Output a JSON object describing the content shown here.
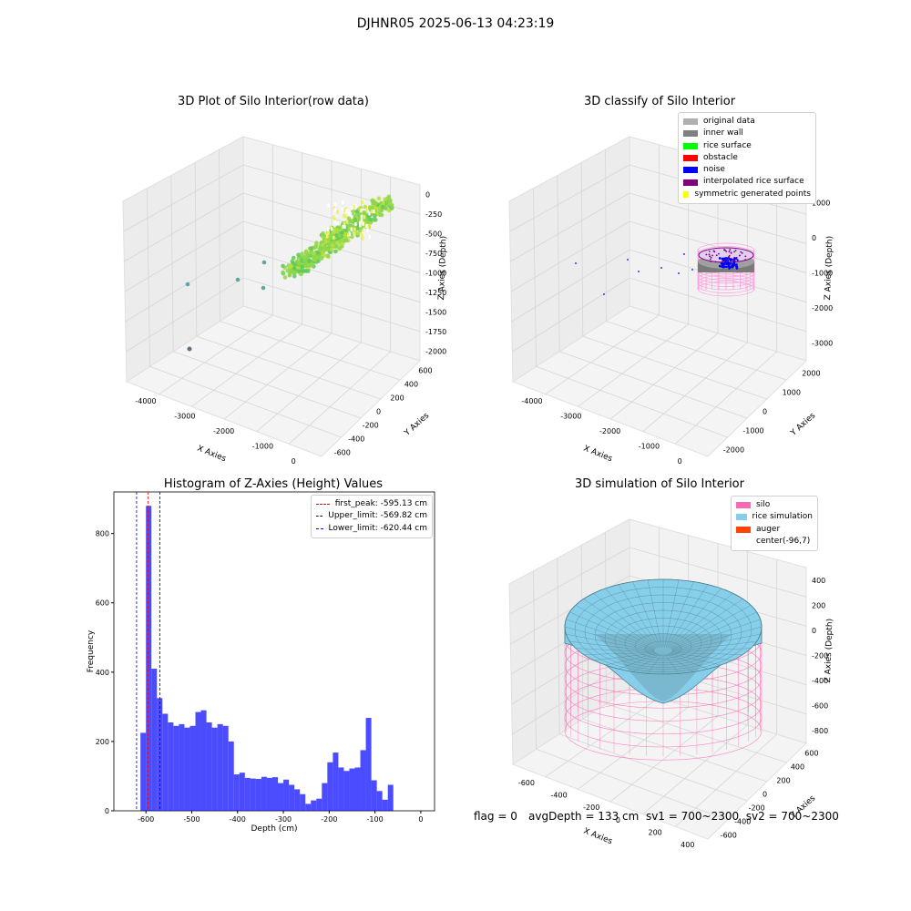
{
  "suptitle": "DJHNR05 2025-06-13 04:23:19",
  "panels": {
    "raw": {
      "title": "3D Plot of Silo Interior(row data)",
      "xlabel": "X Axies",
      "ylabel": "Y Axies",
      "zlabel": "Z Axies (Depth)",
      "xticks": [
        "-4000",
        "-3000",
        "-2000",
        "-1000",
        "0"
      ],
      "yticks": [
        "600",
        "400",
        "200",
        "0",
        "-200",
        "-400",
        "-600"
      ],
      "zticks": [
        "0",
        "-250",
        "-500",
        "-750",
        "-1000",
        "-1250",
        "-1500",
        "-1750",
        "-2000"
      ]
    },
    "classify": {
      "title": "3D classify of Silo Interior",
      "xlabel": "X Axies",
      "ylabel": "Y Axies",
      "zlabel": "Z Axies (Depth)",
      "xticks": [
        "-4000",
        "-3000",
        "-2000",
        "-1000",
        "0"
      ],
      "yticks": [
        "2000",
        "1000",
        "0",
        "-1000",
        "-2000"
      ],
      "zticks": [
        "1000",
        "0",
        "-1000",
        "-2000",
        "-3000"
      ],
      "legend": [
        {
          "label": "original data",
          "color": "#b0b0b0"
        },
        {
          "label": "inner wall",
          "color": "#808080"
        },
        {
          "label": "rice surface",
          "color": "#00ff00"
        },
        {
          "label": "obstacle",
          "color": "#ff0000"
        },
        {
          "label": "noise",
          "color": "#0000ff"
        },
        {
          "label": "interpolated rice surface",
          "color": "#800080"
        },
        {
          "label": "symmetric generated points",
          "color": "#ffff00"
        }
      ]
    },
    "histogram": {
      "title": "Histogram of Z-Axies (Height) Values",
      "legend": [
        {
          "label": "first_peak: -595.13 cm",
          "color": "#ff0000"
        },
        {
          "label": "Upper_limit: -569.82 cm",
          "color": "#00008b"
        },
        {
          "label": "Lower_limit: -620.44 cm",
          "color": "#0000ff"
        }
      ]
    },
    "simulation": {
      "title": "3D simulation of Silo Interior",
      "xlabel": "X Axies",
      "ylabel": "Y Axies",
      "zlabel": "Z Axies (Depth)",
      "xticks": [
        "-600",
        "-400",
        "-200",
        "0",
        "200",
        "400"
      ],
      "yticks": [
        "600",
        "400",
        "200",
        "0",
        "-200",
        "-400",
        "-600"
      ],
      "zticks": [
        "400",
        "200",
        "0",
        "-200",
        "-400",
        "-600",
        "-800"
      ],
      "legend": [
        {
          "label": "silo",
          "color": "#ff69b4"
        },
        {
          "label": "rice simulation",
          "color": "#87ceeb"
        },
        {
          "label": "auger",
          "color": "#ff4500"
        },
        {
          "label": "center(-96,7)",
          "color": "#ffffff"
        }
      ]
    }
  },
  "footer": {
    "flag": "flag = 0",
    "avg": "avgDepth = 133 cm  sv1 = 700~2300  sv2 = 700~2300"
  },
  "chart_data": {
    "type": "bar",
    "title": "Histogram of Z-Axies (Height) Values",
    "xlabel": "Depth (cm)",
    "ylabel": "Frequency",
    "xlim": [
      -670,
      30
    ],
    "ylim": [
      0,
      920
    ],
    "xticks": [
      -600,
      -500,
      -400,
      -300,
      -200,
      -100,
      0
    ],
    "yticks": [
      0,
      200,
      400,
      600,
      800
    ],
    "bin_width": 12,
    "bin_start": -612,
    "values": [
      225,
      880,
      410,
      325,
      280,
      255,
      245,
      250,
      240,
      245,
      285,
      290,
      255,
      240,
      250,
      245,
      200,
      105,
      110,
      95,
      93,
      92,
      98,
      95,
      97,
      80,
      90,
      75,
      62,
      48,
      20,
      30,
      35,
      80,
      140,
      168,
      125,
      115,
      122,
      125,
      175,
      268,
      88,
      57,
      32,
      75
    ],
    "vlines": [
      {
        "name": "first_peak",
        "x": -595.13,
        "color": "#ff0000"
      },
      {
        "name": "Upper_limit",
        "x": -569.82,
        "color": "#00008b"
      },
      {
        "name": "Lower_limit",
        "x": -620.44,
        "color": "#0000ff"
      }
    ],
    "bar_color": "#0000ff"
  }
}
